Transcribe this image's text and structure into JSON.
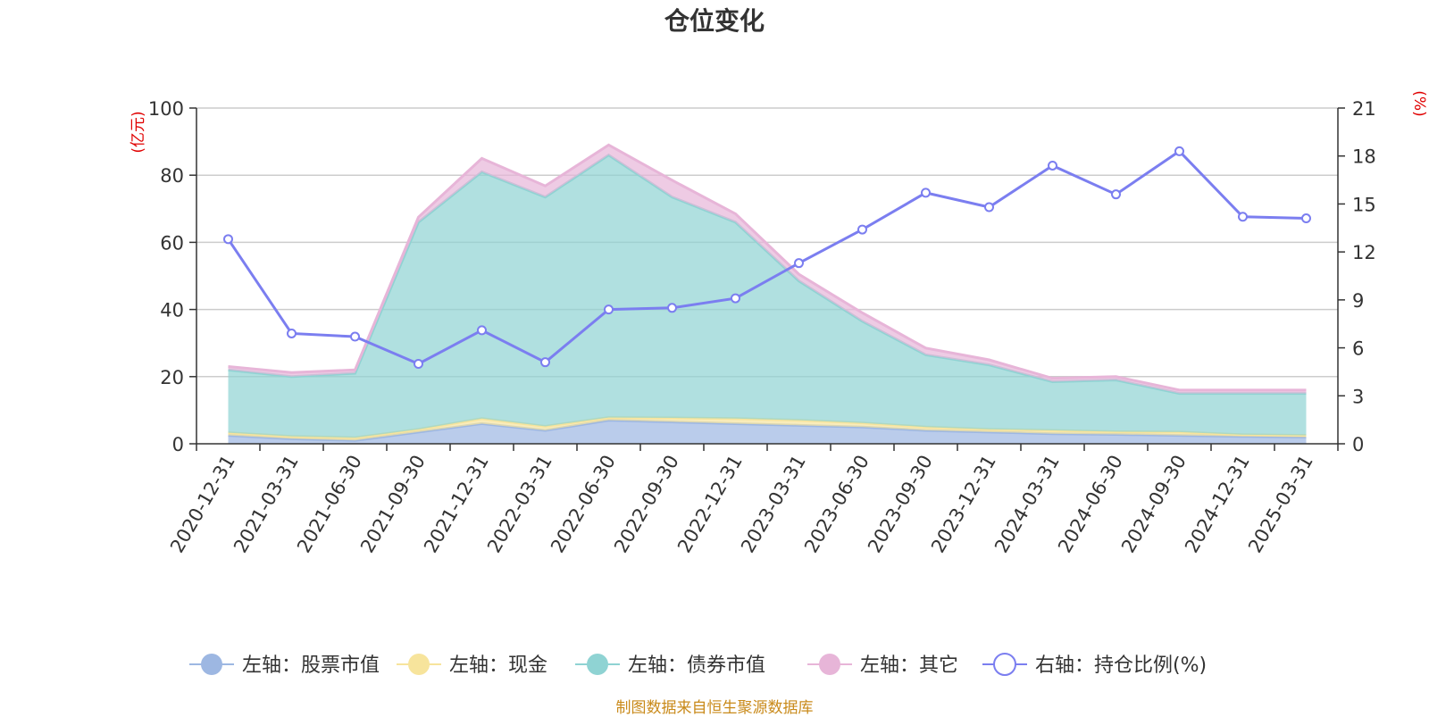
{
  "chart_data": {
    "type": "area",
    "title": "仓位变化",
    "left_axis_unit": "(亿元)",
    "right_axis_unit": "(%)",
    "categories": [
      "2020-12-31",
      "2021-03-31",
      "2021-06-30",
      "2021-09-30",
      "2021-12-31",
      "2022-03-31",
      "2022-06-30",
      "2022-09-30",
      "2022-12-31",
      "2023-03-31",
      "2023-06-30",
      "2023-09-30",
      "2023-12-31",
      "2024-03-31",
      "2024-06-30",
      "2024-09-30",
      "2024-12-31",
      "2025-03-31"
    ],
    "left_ylim": [
      0,
      100
    ],
    "left_ticks": [
      0,
      20,
      40,
      60,
      80,
      100
    ],
    "right_ylim": [
      0,
      21
    ],
    "right_ticks": [
      0,
      3,
      6,
      9,
      12,
      15,
      18,
      21
    ],
    "grid": true,
    "legend_position": "bottom",
    "series": [
      {
        "name": "左轴：股票市值",
        "axis": "left",
        "kind": "stacked-area",
        "color": "#9db7e2",
        "values": [
          2.5,
          1.5,
          1.0,
          3.5,
          6.0,
          4.0,
          7.0,
          6.5,
          6.0,
          5.5,
          5.0,
          4.0,
          3.5,
          3.0,
          2.8,
          2.5,
          2.2,
          2.0
        ]
      },
      {
        "name": "左轴：现金",
        "axis": "left",
        "kind": "stacked-area",
        "color": "#f7e49c",
        "values": [
          0.8,
          0.7,
          0.8,
          0.8,
          1.5,
          1.2,
          0.8,
          1.2,
          1.5,
          1.5,
          1.2,
          1.0,
          0.8,
          1.0,
          0.8,
          1.0,
          0.5,
          0.5
        ]
      },
      {
        "name": "左轴：债券市值",
        "axis": "left",
        "kind": "stacked-area",
        "color": "#8fd3d3",
        "values": [
          18.7,
          17.8,
          19.2,
          61.7,
          73.5,
          68.3,
          78.2,
          65.8,
          58.5,
          41.5,
          30.3,
          21.5,
          19.2,
          14.5,
          15.4,
          11.5,
          12.3,
          12.5
        ]
      },
      {
        "name": "左轴：其它",
        "axis": "left",
        "kind": "stacked-area",
        "color": "#e7b5d8",
        "values": [
          1.0,
          1.2,
          1.0,
          1.5,
          4.0,
          3.3,
          3.0,
          5.0,
          2.5,
          2.0,
          2.5,
          2.0,
          1.5,
          1.0,
          1.0,
          1.0,
          1.0,
          1.0
        ]
      },
      {
        "name": "右轴：持仓比例(%)",
        "axis": "right",
        "kind": "line",
        "color": "#7b7ef0",
        "values": [
          12.8,
          6.9,
          6.7,
          5.0,
          7.1,
          5.1,
          8.4,
          8.5,
          9.1,
          11.3,
          13.4,
          15.7,
          14.8,
          17.4,
          15.6,
          18.3,
          14.2,
          14.1
        ]
      }
    ],
    "source_note": "制图数据来自恒生聚源数据库"
  }
}
